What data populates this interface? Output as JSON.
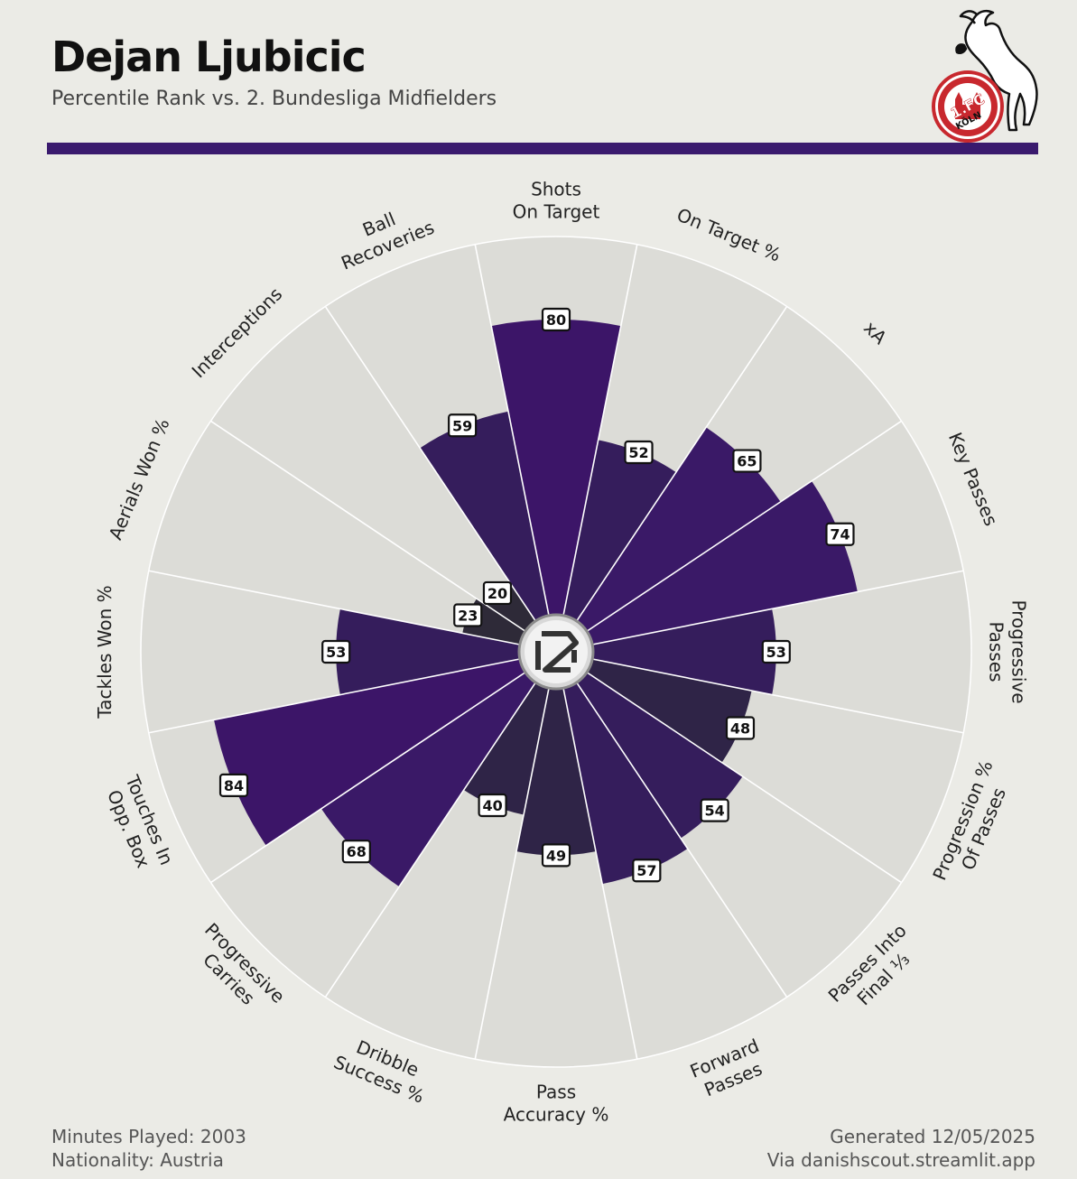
{
  "header": {
    "title": "Dejan Ljubicic",
    "subtitle": "Percentile Rank vs. 2. Bundesliga Midfielders"
  },
  "footer": {
    "minutes": "Minutes Played: 2003",
    "nationality": "Nationality: Austria",
    "generated": "Generated 12/05/2025",
    "source": "Via danishscout.streamlit.app"
  },
  "logo": {
    "text_line1": "1.FC",
    "text_line2": "KÖLN"
  },
  "colors": {
    "background": "#ebebe6",
    "wedge_background": "#dcdcd7",
    "accent": "#3a1a6e",
    "low_value": "#2e2a3a",
    "high_value": "#3d1670"
  },
  "chart_data": {
    "type": "polar-bar",
    "title": "Dejan Ljubicic",
    "subtitle": "Percentile Rank vs. 2. Bundesliga Midfielders",
    "rmax": 100,
    "direction": "clockwise from top",
    "categories": [
      [
        "Shots",
        "On Target"
      ],
      [
        "On Target %"
      ],
      [
        "xA"
      ],
      [
        "Key Passes"
      ],
      [
        "Progressive",
        "Passes"
      ],
      [
        "Progression %",
        "Of Passes"
      ],
      [
        "Passes Into",
        "Final ⅓"
      ],
      [
        "Forward",
        "Passes"
      ],
      [
        "Pass",
        "Accuracy %"
      ],
      [
        "Dribble",
        "Success %"
      ],
      [
        "Progressive",
        "Carries"
      ],
      [
        "Touches In",
        "Opp. Box"
      ],
      [
        "Tackles Won %"
      ],
      [
        "Aerials Won %"
      ],
      [
        "Interceptions"
      ],
      [
        "Ball",
        "Recoveries"
      ]
    ],
    "values": [
      80,
      52,
      65,
      74,
      53,
      48,
      54,
      57,
      49,
      40,
      68,
      84,
      53,
      23,
      20,
      59
    ]
  }
}
